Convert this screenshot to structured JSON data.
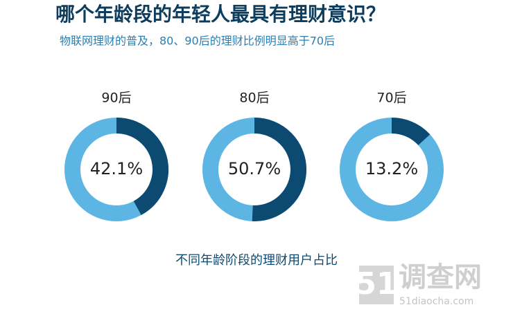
{
  "chart_data": {
    "type": "donut",
    "title": "哪个年龄段的年轻人最具有理财意识？",
    "subtitle": "物联网理财的普及，80、90后的理财比例明显高于70后",
    "categories": [
      "90后",
      "80后",
      "70后"
    ],
    "values": [
      42.1,
      50.7,
      13.2
    ],
    "value_labels": [
      "42.1%",
      "50.7%",
      "13.2%"
    ],
    "color": "#0d4a72",
    "track_color": "#5db5e3",
    "caption": "不同年龄阶段的理财用户占比"
  },
  "watermark": {
    "number": "51",
    "name": "调查网",
    "url": "51diaocha.com"
  }
}
